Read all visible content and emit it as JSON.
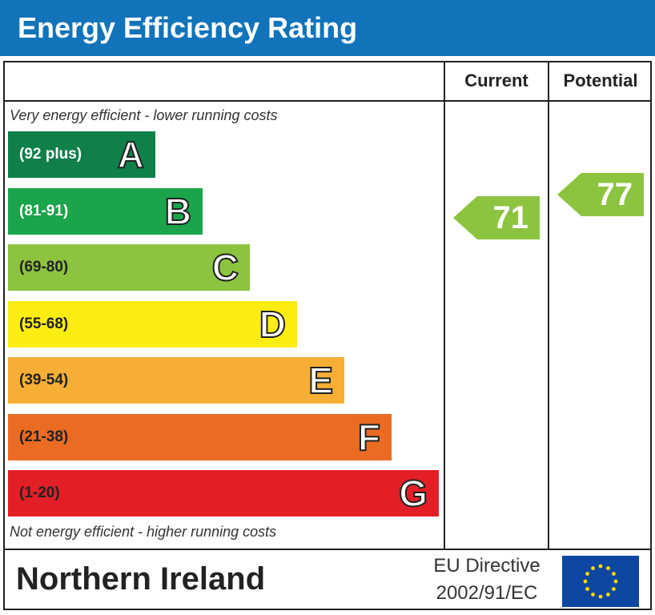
{
  "header": {
    "title": "Energy Efficiency Rating",
    "color": "#1174bb"
  },
  "columns": {
    "current": "Current",
    "potential": "Potential"
  },
  "notes": {
    "top": "Very energy efficient - lower running costs",
    "bottom": "Not energy efficient - higher running costs"
  },
  "bands": [
    {
      "letter": "A",
      "range": "(92 plus)",
      "color": "#10804a",
      "range_color": "#ffffff"
    },
    {
      "letter": "B",
      "range": "(81-91)",
      "color": "#1ba44a",
      "range_color": "#ffffff"
    },
    {
      "letter": "C",
      "range": "(69-80)",
      "color": "#8cc43f",
      "range_color": "#222222"
    },
    {
      "letter": "D",
      "range": "(55-68)",
      "color": "#fbed12",
      "range_color": "#222222"
    },
    {
      "letter": "E",
      "range": "(39-54)",
      "color": "#f6ae35",
      "range_color": "#222222"
    },
    {
      "letter": "F",
      "range": "(21-38)",
      "color": "#ec6b23",
      "range_color": "#222222"
    },
    {
      "letter": "G",
      "range": "(1-20)",
      "color": "#e21f26",
      "range_color": "#222222"
    }
  ],
  "chart_data": {
    "type": "bar",
    "title": "Energy Efficiency Rating",
    "categories": [
      "A",
      "B",
      "C",
      "D",
      "E",
      "F",
      "G"
    ],
    "ranges": [
      "(92 plus)",
      "(81-91)",
      "(69-80)",
      "(55-68)",
      "(39-54)",
      "(21-38)",
      "(1-20)"
    ],
    "current": {
      "value": 71,
      "band": "C"
    },
    "potential": {
      "value": 77,
      "band": "C"
    }
  },
  "ratings": {
    "current": {
      "value": "71",
      "color": "#8cc43f"
    },
    "potential": {
      "value": "77",
      "color": "#8cc43f"
    }
  },
  "footer": {
    "region": "Northern Ireland",
    "directive_line1": "EU Directive",
    "directive_line2": "2002/91/EC",
    "flag_color": "#0d47a1",
    "star_color": "#ffdd00"
  }
}
